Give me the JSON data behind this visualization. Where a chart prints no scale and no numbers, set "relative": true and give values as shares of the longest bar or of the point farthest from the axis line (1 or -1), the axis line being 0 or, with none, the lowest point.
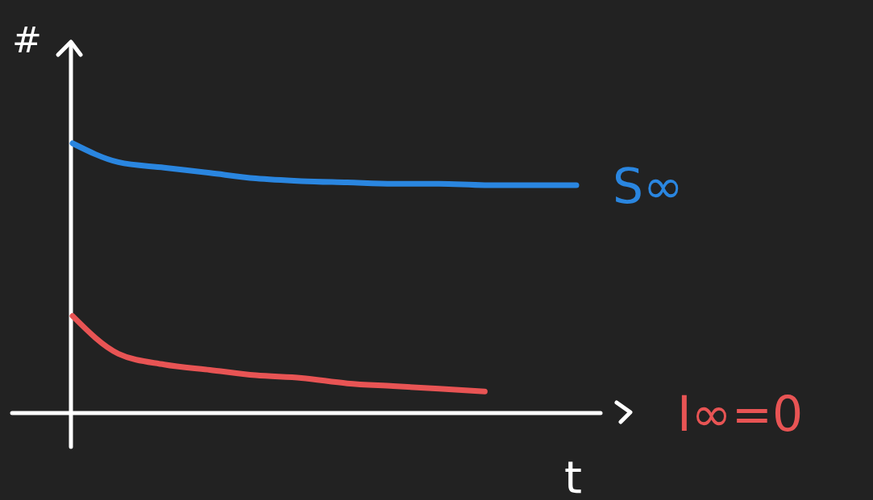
{
  "chart_data": {
    "type": "line",
    "xlabel": "t",
    "ylabel": "#",
    "relative": true,
    "legend": false,
    "categories": [
      null,
      null,
      null,
      null,
      null,
      null,
      null,
      null,
      null,
      null,
      null,
      null
    ],
    "series": [
      {
        "name": "S∞",
        "color": "#2a86e0",
        "values": [
          1.0,
          0.93,
          0.91,
          0.89,
          0.87,
          0.86,
          0.855,
          0.85,
          0.85,
          0.845,
          0.845,
          0.845
        ]
      },
      {
        "name": "I∞=0",
        "color": "#e85454",
        "values": [
          0.36,
          0.22,
          0.18,
          0.16,
          0.14,
          0.13,
          0.11,
          0.1,
          0.09,
          0.08,
          null,
          null
        ]
      }
    ]
  }
}
